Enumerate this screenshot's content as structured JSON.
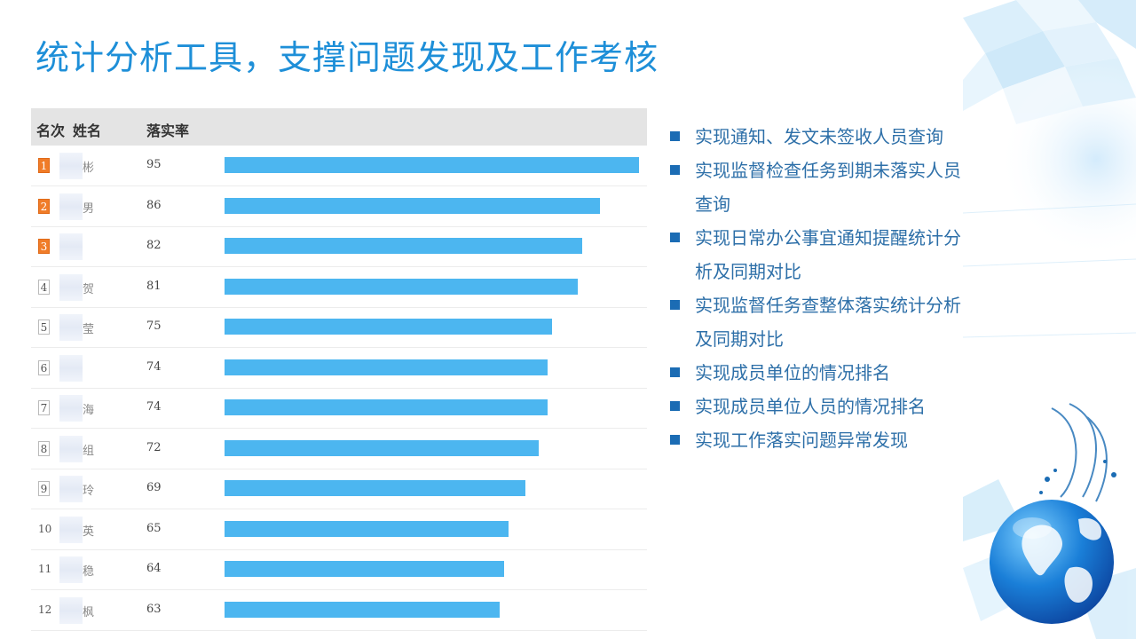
{
  "title": "统计分析工具，支撑问题发现及工作考核",
  "table": {
    "headers": {
      "rank": "名次",
      "name": "姓名",
      "rate": "落实率"
    },
    "rows": [
      {
        "rank": "1",
        "name": "彬",
        "rate": "95",
        "value": 95
      },
      {
        "rank": "2",
        "name": "男",
        "rate": "86",
        "value": 86
      },
      {
        "rank": "3",
        "name": "",
        "rate": "82",
        "value": 82
      },
      {
        "rank": "4",
        "name": "贺",
        "rate": "81",
        "value": 81
      },
      {
        "rank": "5",
        "name": "莹",
        "rate": "75",
        "value": 75
      },
      {
        "rank": "6",
        "name": "",
        "rate": "74",
        "value": 74
      },
      {
        "rank": "7",
        "name": "海",
        "rate": "74",
        "value": 74
      },
      {
        "rank": "8",
        "name": "组",
        "rate": "72",
        "value": 72
      },
      {
        "rank": "9",
        "name": "玲",
        "rate": "69",
        "value": 69
      },
      {
        "rank": "10",
        "name": "英",
        "rate": "65",
        "value": 65
      },
      {
        "rank": "11",
        "name": "稳",
        "rate": "64",
        "value": 64
      },
      {
        "rank": "12",
        "name": "枫",
        "rate": "63",
        "value": 63
      }
    ],
    "bar_color": "#4cb6f0",
    "top_badge_color": "#f07c28"
  },
  "features": [
    "实现通知、发文未签收人员查询",
    "实现监督检查任务到期未落实人员查询",
    "实现日常办公事宜通知提醒统计分析及同期对比",
    "实现监督任务查整体落实统计分析及同期对比",
    "实现成员单位的情况排名",
    "实现成员单位人员的情况排名",
    "实现工作落实问题异常发现"
  ],
  "accent_color": "#1e8fd8",
  "decoration": "globe-icon"
}
